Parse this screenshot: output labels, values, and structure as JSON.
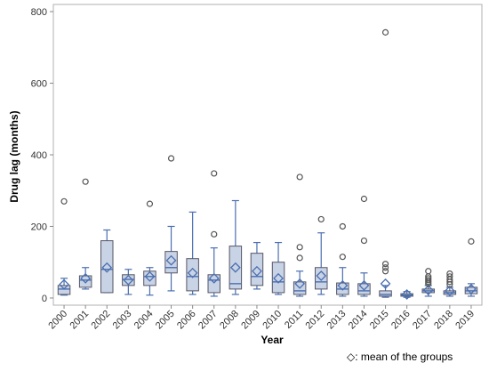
{
  "chart_data": {
    "type": "box",
    "xlabel": "Year",
    "ylabel": "Drug lag (months)",
    "ylim": [
      -20,
      820
    ],
    "yticks": [
      0,
      200,
      400,
      600,
      800
    ],
    "grid": false,
    "legend": {
      "text": "◇: mean of the groups",
      "placement": "bottom-right"
    },
    "colors": {
      "box_fill": "#c9d3e6",
      "box_stroke": "#555566",
      "whisker": "#4a6fb0",
      "mean_marker": "#4a6fb0",
      "outlier": "#555555",
      "frame": "#b0b0b0"
    },
    "categories": [
      "2000",
      "2001",
      "2002",
      "2003",
      "2004",
      "2005",
      "2006",
      "2007",
      "2008",
      "2009",
      "2010",
      "2011",
      "2012",
      "2013",
      "2014",
      "2015",
      "2016",
      "2017",
      "2018",
      "2019"
    ],
    "boxes": [
      {
        "year": "2000",
        "min": 8,
        "q1": 10,
        "median": 25,
        "q3": 35,
        "max": 55,
        "mean": 38,
        "outliers": [
          270
        ]
      },
      {
        "year": "2001",
        "min": 25,
        "q1": 30,
        "median": 50,
        "q3": 62,
        "max": 85,
        "mean": 55,
        "outliers": [
          325
        ]
      },
      {
        "year": "2002",
        "min": 15,
        "q1": 15,
        "median": 80,
        "q3": 160,
        "max": 190,
        "mean": 85,
        "outliers": []
      },
      {
        "year": "2003",
        "min": 10,
        "q1": 35,
        "median": 52,
        "q3": 65,
        "max": 80,
        "mean": 50,
        "outliers": []
      },
      {
        "year": "2004",
        "min": 8,
        "q1": 35,
        "median": 60,
        "q3": 75,
        "max": 85,
        "mean": 60,
        "outliers": [
          263
        ]
      },
      {
        "year": "2005",
        "min": 20,
        "q1": 70,
        "median": 85,
        "q3": 130,
        "max": 200,
        "mean": 105,
        "outliers": [
          390
        ]
      },
      {
        "year": "2006",
        "min": 10,
        "q1": 20,
        "median": 60,
        "q3": 110,
        "max": 240,
        "mean": 70,
        "outliers": []
      },
      {
        "year": "2007",
        "min": 5,
        "q1": 15,
        "median": 50,
        "q3": 65,
        "max": 140,
        "mean": 55,
        "outliers": [
          178,
          348
        ]
      },
      {
        "year": "2008",
        "min": 10,
        "q1": 25,
        "median": 40,
        "q3": 145,
        "max": 272,
        "mean": 85,
        "outliers": []
      },
      {
        "year": "2009",
        "min": 25,
        "q1": 35,
        "median": 60,
        "q3": 125,
        "max": 155,
        "mean": 75,
        "outliers": []
      },
      {
        "year": "2010",
        "min": 10,
        "q1": 15,
        "median": 45,
        "q3": 100,
        "max": 155,
        "mean": 55,
        "outliers": []
      },
      {
        "year": "2011",
        "min": 5,
        "q1": 10,
        "median": 20,
        "q3": 45,
        "max": 75,
        "mean": 40,
        "outliers": [
          112,
          142,
          338
        ]
      },
      {
        "year": "2012",
        "min": 10,
        "q1": 25,
        "median": 45,
        "q3": 85,
        "max": 182,
        "mean": 62,
        "outliers": [
          220
        ]
      },
      {
        "year": "2013",
        "min": 5,
        "q1": 10,
        "median": 25,
        "q3": 42,
        "max": 85,
        "mean": 35,
        "outliers": [
          115,
          200
        ]
      },
      {
        "year": "2014",
        "min": 5,
        "q1": 10,
        "median": 20,
        "q3": 40,
        "max": 70,
        "mean": 35,
        "outliers": [
          160,
          277
        ]
      },
      {
        "year": "2015",
        "min": 2,
        "q1": 5,
        "median": 10,
        "q3": 20,
        "max": 35,
        "mean": 40,
        "outliers": [
          75,
          85,
          95,
          742
        ]
      },
      {
        "year": "2016",
        "min": 2,
        "q1": 5,
        "median": 8,
        "q3": 12,
        "max": 18,
        "mean": 10,
        "outliers": []
      },
      {
        "year": "2017",
        "min": 5,
        "q1": 15,
        "median": 20,
        "q3": 25,
        "max": 35,
        "mean": 22,
        "outliers": [
          40,
          45,
          50,
          55,
          60,
          75
        ]
      },
      {
        "year": "2018",
        "min": 5,
        "q1": 10,
        "median": 15,
        "q3": 20,
        "max": 30,
        "mean": 20,
        "outliers": [
          38,
          45,
          52,
          60,
          68
        ]
      },
      {
        "year": "2019",
        "min": 5,
        "q1": 12,
        "median": 20,
        "q3": 30,
        "max": 40,
        "mean": 25,
        "outliers": [
          158
        ]
      }
    ]
  }
}
